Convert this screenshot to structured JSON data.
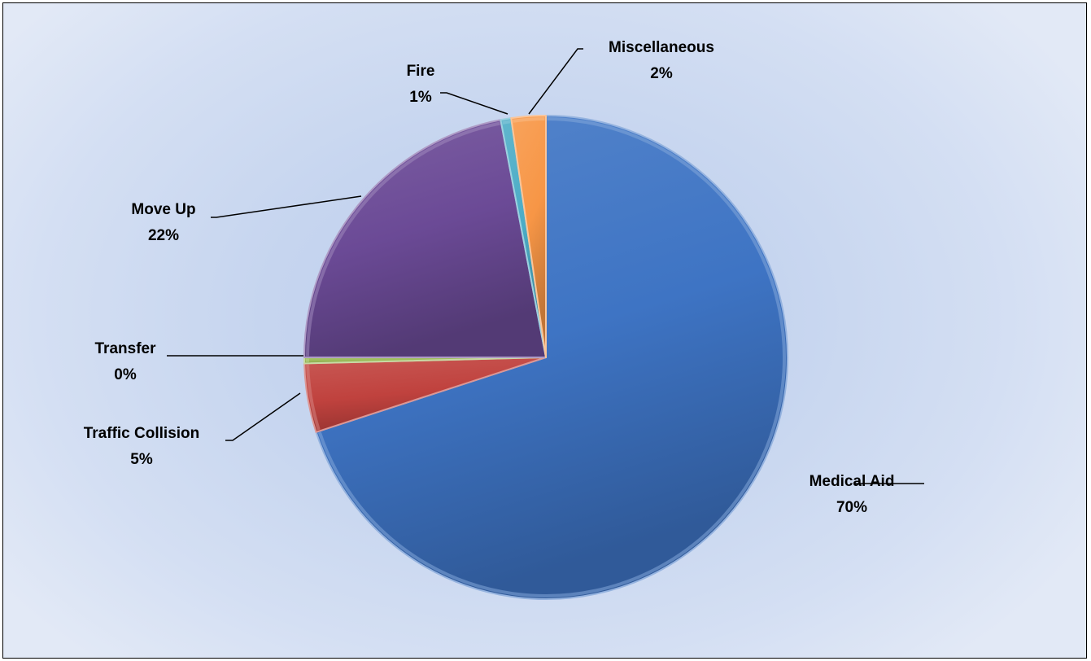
{
  "chart_data": {
    "type": "pie",
    "title": "",
    "start_angle": "12 o'clock",
    "direction": "clockwise",
    "legend": "none",
    "data_labels": "category name and percentage, with leader lines",
    "style": "3D bevelled slices with gradient fill",
    "slices": [
      {
        "label": "Medical Aid",
        "value": 70,
        "percent_label": "70%",
        "color": "#3e74c4"
      },
      {
        "label": "Traffic Collision",
        "value": 4.6,
        "percent_label": "5%",
        "color": "#c0423e"
      },
      {
        "label": "Transfer",
        "value": 0.4,
        "percent_label": "0%",
        "color": "#9bbb59"
      },
      {
        "label": "Move Up",
        "value": 22,
        "percent_label": "22%",
        "color": "#6b4a96"
      },
      {
        "label": "Fire",
        "value": 0.7,
        "percent_label": "1%",
        "color": "#4bacc6"
      },
      {
        "label": "Miscellaneous",
        "value": 2.3,
        "percent_label": "2%",
        "color": "#f79646"
      }
    ]
  }
}
